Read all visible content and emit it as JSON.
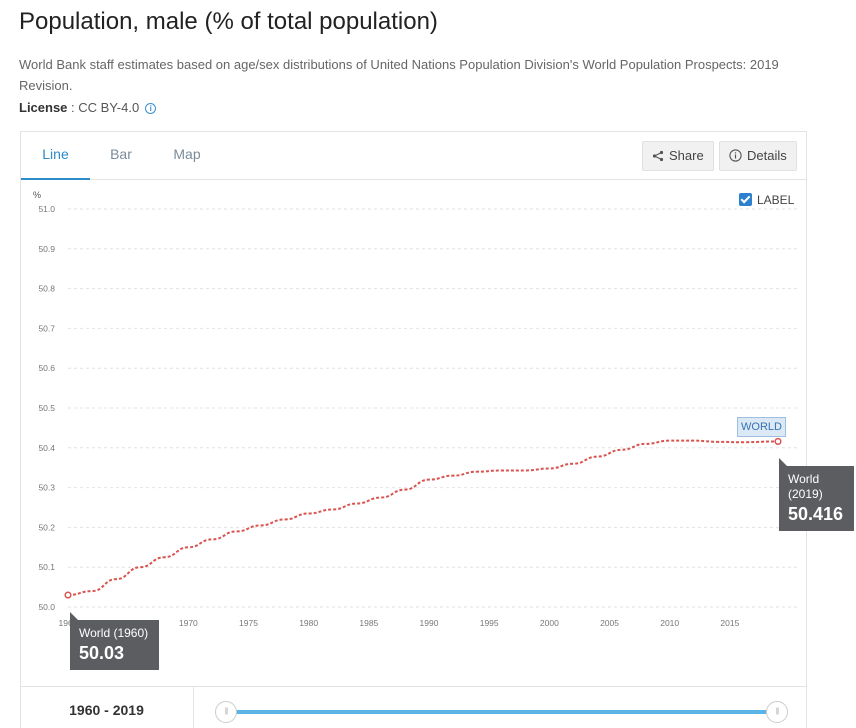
{
  "header": {
    "title": "Population, male (% of total population)",
    "description": "World Bank staff estimates based on age/sex distributions of United Nations Population Division's World Population Prospects: 2019 Revision.",
    "license_label": "License",
    "license_value": " : CC BY-4.0",
    "info_icon": "info-icon"
  },
  "tabs": [
    {
      "label": "Line",
      "active": true
    },
    {
      "label": "Bar",
      "active": false
    },
    {
      "label": "Map",
      "active": false
    }
  ],
  "toolbar": {
    "share_label": "Share",
    "details_label": "Details"
  },
  "label_toggle": {
    "text": "LABEL",
    "checked": true
  },
  "chart_data": {
    "type": "line",
    "ylabel": "%",
    "ylim": [
      50.0,
      51.0
    ],
    "yticks": [
      "51.0",
      "50.9",
      "50.8",
      "50.7",
      "50.6",
      "50.5",
      "50.4",
      "50.3",
      "50.2",
      "50.1",
      "50.0"
    ],
    "xticks": [
      "1960",
      "1965",
      "1970",
      "1975",
      "1980",
      "1985",
      "1990",
      "1995",
      "2000",
      "2005",
      "2010",
      "2015"
    ],
    "xlim": [
      1960,
      2019
    ],
    "grid": true,
    "series": [
      {
        "name": "World",
        "color": "#d9534f",
        "x": [
          1960,
          1962,
          1964,
          1966,
          1968,
          1970,
          1972,
          1974,
          1976,
          1978,
          1980,
          1982,
          1984,
          1986,
          1988,
          1990,
          1992,
          1994,
          1996,
          1998,
          2000,
          2002,
          2004,
          2006,
          2008,
          2010,
          2012,
          2014,
          2016,
          2019
        ],
        "values": [
          50.03,
          50.04,
          50.07,
          50.1,
          50.125,
          50.15,
          50.17,
          50.19,
          50.205,
          50.22,
          50.235,
          50.245,
          50.26,
          50.275,
          50.295,
          50.32,
          50.33,
          50.34,
          50.343,
          50.343,
          50.348,
          50.36,
          50.378,
          50.395,
          50.41,
          50.418,
          50.418,
          50.415,
          50.414,
          50.416
        ]
      }
    ],
    "end_badge": "WORLD"
  },
  "tooltips": {
    "end": {
      "title": "World",
      "year": "(2019)",
      "value": "50.416"
    },
    "start": {
      "title": "World (1960)",
      "value": "50.03"
    }
  },
  "range": {
    "label": "1960 - 2019",
    "start_handle": "|||",
    "end_handle": "|||"
  }
}
